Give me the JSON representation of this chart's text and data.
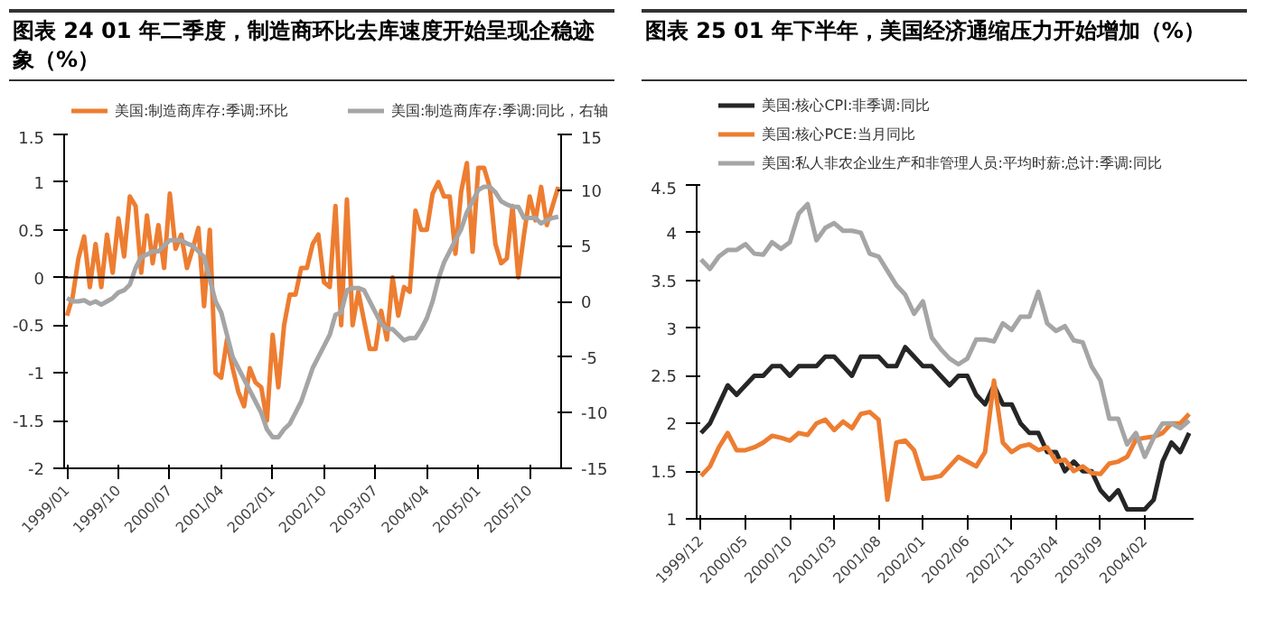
{
  "chart_data": [
    {
      "type": "line",
      "title": "图表 24   01 年二季度，制造商环比去库速度开始呈现企稳迹象（%）",
      "categories": [
        "1999/01",
        null,
        null,
        null,
        null,
        null,
        null,
        null,
        null,
        "1999/10",
        null,
        null,
        null,
        null,
        null,
        null,
        null,
        null,
        "2000/07",
        null,
        null,
        null,
        null,
        null,
        null,
        null,
        null,
        "2001/04",
        null,
        null,
        null,
        null,
        null,
        null,
        null,
        null,
        "2002/01",
        null,
        null,
        null,
        null,
        null,
        null,
        null,
        null,
        "2002/10",
        null,
        null,
        null,
        null,
        null,
        null,
        null,
        null,
        "2003/07",
        null,
        null,
        null,
        null,
        null,
        null,
        null,
        null,
        "2004/04",
        null,
        null,
        null,
        null,
        null,
        null,
        null,
        null,
        "2005/01",
        null,
        null,
        null,
        null,
        null,
        null,
        null,
        null,
        "2005/10",
        null,
        null,
        null,
        null,
        null
      ],
      "series": [
        {
          "name": "美国:制造商库存:季调:环比",
          "color": "#ed7d31",
          "values": [
            -0.4,
            -0.2,
            0.2,
            0.43,
            -0.1,
            0.35,
            -0.1,
            0.45,
            0.05,
            0.62,
            0.22,
            0.85,
            0.75,
            0.05,
            0.65,
            0.15,
            0.55,
            0.1,
            0.88,
            0.3,
            0.45,
            0.1,
            0.3,
            0.52,
            -0.3,
            0.5,
            -1.0,
            -1.05,
            -0.65,
            -0.95,
            -1.2,
            -1.35,
            -0.95,
            -1.1,
            -1.15,
            -1.5,
            -0.6,
            -1.15,
            -0.5,
            -0.18,
            -0.18,
            0.1,
            0.1,
            0.35,
            0.45,
            -0.05,
            -0.1,
            0.75,
            -0.5,
            0.82,
            -0.5,
            -0.15,
            -0.45,
            -0.75,
            -0.75,
            -0.35,
            -0.65,
            0.0,
            -0.4,
            -0.1,
            -0.15,
            0.7,
            0.5,
            0.5,
            0.88,
            1.0,
            0.85,
            0.85,
            0.25,
            0.9,
            1.2,
            0.27,
            1.15,
            1.15,
            0.95,
            0.35,
            0.15,
            0.2,
            0.75,
            0.0,
            0.45,
            0.85,
            0.6,
            0.95,
            0.55,
            0.75,
            0.95
          ]
        },
        {
          "name": "美国:制造商库存:季调:同比，右轴",
          "color": "#a5a5a5",
          "axis": "y2",
          "values": [
            0.3,
            0,
            0,
            0.1,
            -0.2,
            0,
            -0.3,
            0,
            0.3,
            0.8,
            1,
            1.5,
            3,
            4,
            4.2,
            4.5,
            4.5,
            5,
            5.5,
            5.5,
            5.5,
            5.2,
            5,
            4.5,
            4,
            2,
            0,
            -1,
            -3,
            -5,
            -6,
            -7,
            -8,
            -9,
            -10,
            -11.5,
            -12.2,
            -12.2,
            -11.5,
            -11,
            -10,
            -9,
            -7.5,
            -6,
            -5,
            -4,
            -3,
            -1.2,
            -1,
            1,
            1.2,
            1.2,
            1,
            0,
            -1,
            -2,
            -2.5,
            -2.5,
            -3,
            -3.5,
            -3.3,
            -3.3,
            -2.5,
            -1.5,
            0,
            2,
            3.5,
            4.5,
            5.5,
            6.5,
            8,
            9,
            10,
            10.3,
            10.3,
            9.8,
            9,
            8.7,
            8.5,
            8.5,
            7.5,
            7.5,
            7.5,
            7,
            7.3,
            7.5,
            7.6
          ]
        }
      ],
      "ylim": [
        -2,
        1.5
      ],
      "yticks": [
        -2,
        -1.5,
        -1,
        -0.5,
        0,
        0.5,
        1,
        1.5
      ],
      "y2lim": [
        -15,
        15
      ],
      "y2ticks": [
        -15,
        -10,
        -5,
        0,
        5,
        10,
        15
      ],
      "ref_lines": [
        {
          "axis": "y",
          "value": 0,
          "color": "#000000"
        }
      ],
      "grid": false,
      "legend": "top"
    },
    {
      "type": "line",
      "title": "图表 25   01 年下半年，美国经济通缩压力开始增加（%）",
      "categories": [
        "1999/12",
        null,
        null,
        null,
        null,
        "2000/05",
        null,
        null,
        null,
        null,
        "2000/10",
        null,
        null,
        null,
        null,
        "2001/03",
        null,
        null,
        null,
        null,
        "2001/08",
        null,
        null,
        null,
        null,
        "2002/01",
        null,
        null,
        null,
        null,
        "2002/06",
        null,
        null,
        null,
        null,
        "2002/11",
        null,
        null,
        null,
        null,
        "2003/04",
        null,
        null,
        null,
        null,
        "2003/09",
        null,
        null,
        null,
        null,
        "2004/02",
        null,
        null,
        null,
        null,
        null
      ],
      "series": [
        {
          "name": "美国:核心CPI:非季调:同比",
          "color": "#262626",
          "values": [
            1.9,
            2.0,
            2.2,
            2.4,
            2.3,
            2.4,
            2.5,
            2.5,
            2.6,
            2.6,
            2.5,
            2.6,
            2.6,
            2.6,
            2.7,
            2.7,
            2.6,
            2.5,
            2.7,
            2.7,
            2.7,
            2.6,
            2.6,
            2.8,
            2.7,
            2.6,
            2.6,
            2.5,
            2.4,
            2.5,
            2.5,
            2.3,
            2.2,
            2.4,
            2.2,
            2.2,
            2.0,
            1.9,
            1.9,
            1.7,
            1.7,
            1.5,
            1.6,
            1.5,
            1.5,
            1.3,
            1.2,
            1.3,
            1.1,
            1.1,
            1.1,
            1.2,
            1.6,
            1.8,
            1.7,
            1.9
          ]
        },
        {
          "name": "美国:核心PCE:当月同比",
          "color": "#ed7d31",
          "values": [
            1.45,
            1.55,
            1.75,
            1.9,
            1.72,
            1.72,
            1.75,
            1.8,
            1.87,
            1.85,
            1.82,
            1.9,
            1.88,
            2.0,
            2.04,
            1.93,
            2.02,
            1.95,
            2.1,
            2.12,
            2.04,
            1.2,
            1.8,
            1.82,
            1.72,
            1.42,
            1.43,
            1.45,
            1.55,
            1.65,
            1.6,
            1.55,
            1.7,
            2.45,
            1.8,
            1.7,
            1.76,
            1.78,
            1.72,
            1.75,
            1.6,
            1.62,
            1.5,
            1.55,
            1.48,
            1.47,
            1.58,
            1.6,
            1.65,
            1.83,
            1.85,
            1.86,
            1.9,
            2.0,
            2.0,
            2.1
          ]
        },
        {
          "name": "美国:私人非农企业生产和非管理人员:平均时薪:总计:季调:同比",
          "color": "#a5a5a5",
          "values": [
            3.72,
            3.62,
            3.75,
            3.82,
            3.82,
            3.88,
            3.78,
            3.77,
            3.9,
            3.83,
            3.9,
            4.2,
            4.3,
            3.92,
            4.05,
            4.1,
            4.02,
            4.02,
            4.0,
            3.78,
            3.75,
            3.6,
            3.45,
            3.35,
            3.15,
            3.28,
            2.9,
            2.78,
            2.68,
            2.62,
            2.68,
            2.88,
            2.88,
            2.86,
            3.05,
            2.98,
            3.12,
            3.12,
            3.38,
            3.05,
            2.97,
            3.02,
            2.87,
            2.85,
            2.6,
            2.45,
            2.05,
            2.05,
            1.78,
            1.9,
            1.65,
            1.85,
            2.0,
            2.0,
            1.95,
            2.03
          ]
        }
      ],
      "ylim": [
        1,
        4.5
      ],
      "yticks": [
        1,
        1.5,
        2,
        2.5,
        3,
        3.5,
        4,
        4.5
      ],
      "grid": false,
      "legend": "top"
    }
  ]
}
